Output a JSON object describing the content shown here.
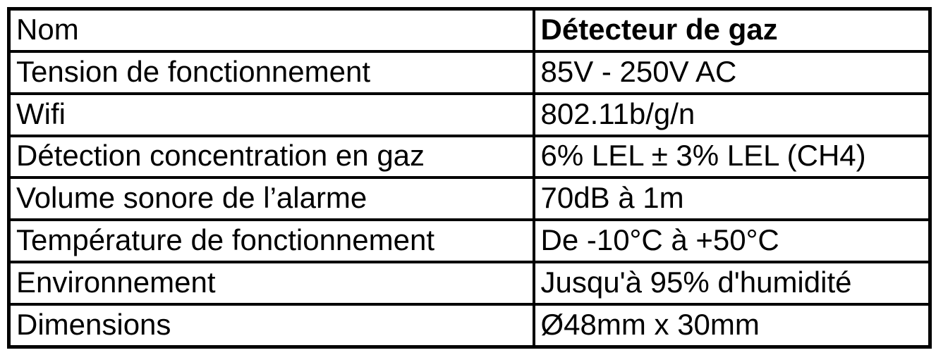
{
  "table": {
    "colors": {
      "border": "#000000",
      "text": "#000000",
      "background": "#ffffff"
    },
    "rows": [
      {
        "label": "Nom",
        "value": "Détecteur de gaz"
      },
      {
        "label": "Tension de fonctionnement",
        "value": "85V - 250V AC"
      },
      {
        "label": "Wifi",
        "value": "802.11b/g/n"
      },
      {
        "label": "Détection concentration en gaz",
        "value": "6% LEL ± 3% LEL (CH4)"
      },
      {
        "label": "Volume sonore de l’alarme",
        "value": "70dB à 1m"
      },
      {
        "label": "Température de fonctionnement",
        "value": "De -10°C à +50°C"
      },
      {
        "label": "Environnement",
        "value": "Jusqu'à 95% d'humidité"
      },
      {
        "label": "Dimensions",
        "value": "Ø48mm x 30mm"
      }
    ]
  }
}
